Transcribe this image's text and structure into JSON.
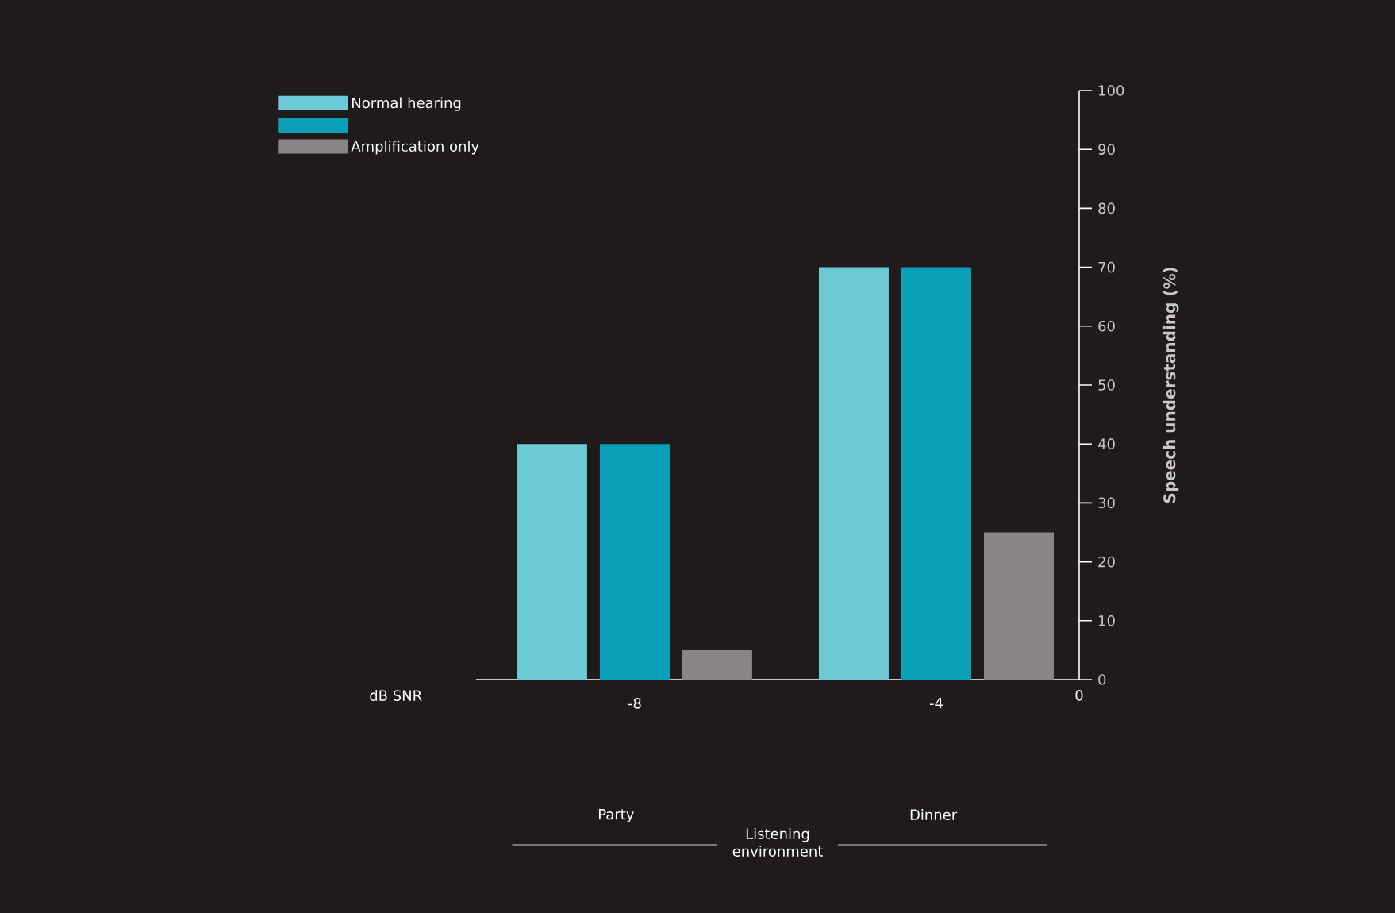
{
  "chart_data": {
    "type": "bar",
    "xlabel": "dB SNR",
    "ylabel": "Speech understanding (%)",
    "categories": [
      "-8",
      "-4"
    ],
    "series": [
      {
        "name": "Normal hearing",
        "color": "#6ccbd6",
        "values": [
          40,
          70
        ]
      },
      {
        "color": "#0aa0b8",
        "values": [
          40,
          70
        ]
      },
      {
        "name": "Amplification only",
        "color": "#8a8585",
        "values": [
          5,
          25
        ]
      }
    ],
    "ylim": [
      0,
      100
    ],
    "yticks": [
      0,
      10,
      20,
      30,
      40,
      50,
      60,
      70,
      80,
      90,
      100
    ],
    "grid": false,
    "legend": "top left",
    "annotations": [
      "0",
      "Party",
      "Dinner",
      "Listening environment"
    ]
  }
}
